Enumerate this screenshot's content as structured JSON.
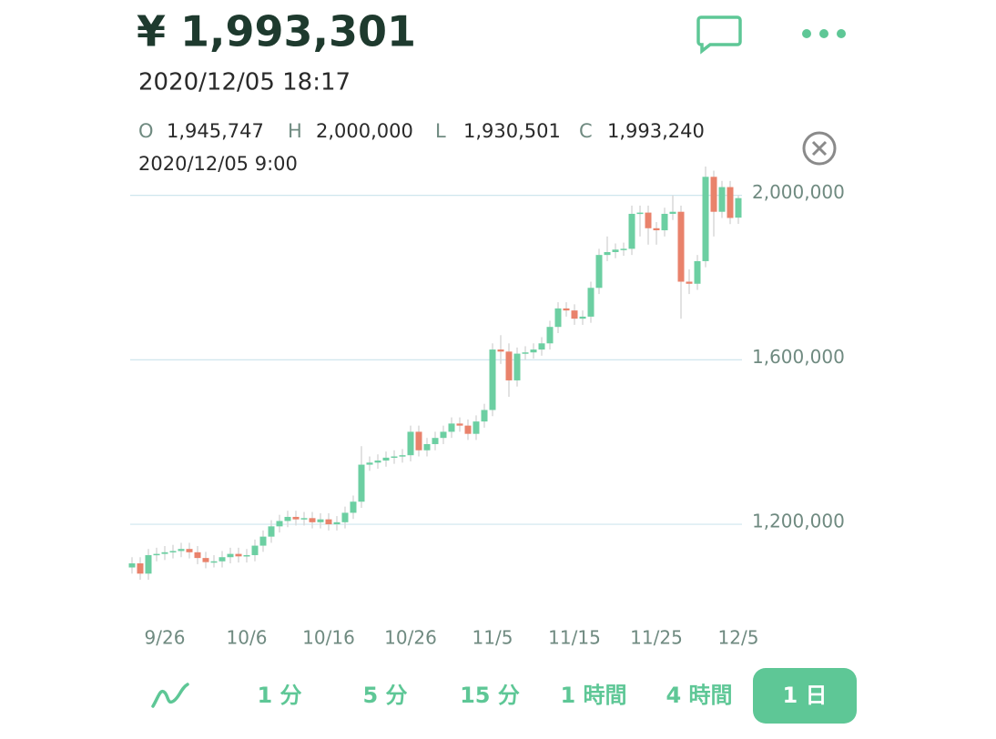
{
  "header": {
    "price": "¥ 1,993,301",
    "datetime": "2020/12/05 18:17",
    "ohlc": [
      {
        "label": "O",
        "value": "1,945,747"
      },
      {
        "label": "H",
        "value": "2,000,000"
      },
      {
        "label": "L",
        "value": "1,930,501"
      },
      {
        "label": "C",
        "value": "1,993,240"
      }
    ],
    "candle_time": "2020/12/05 9:00"
  },
  "tabs": [
    "1 分",
    "5 分",
    "15 分",
    "1 時間",
    "4 時間",
    "1 日"
  ],
  "chart_data": {
    "type": "candlestick",
    "up_color": "#6ccfa2",
    "down_color": "#e9826b",
    "grid": true,
    "ylim": [
      970000,
      2070000
    ],
    "yticks": [
      {
        "value": 1200000,
        "label": "1,200,000"
      },
      {
        "value": 1600000,
        "label": "1,600,000"
      },
      {
        "value": 2000000,
        "label": "2,000,000"
      }
    ],
    "categories": [
      null,
      null,
      null,
      null,
      "9/26",
      null,
      null,
      null,
      null,
      null,
      null,
      null,
      null,
      null,
      "10/6",
      null,
      null,
      null,
      null,
      null,
      null,
      null,
      null,
      null,
      "10/16",
      null,
      null,
      null,
      null,
      null,
      null,
      null,
      null,
      null,
      "10/26",
      null,
      null,
      null,
      null,
      null,
      null,
      null,
      null,
      null,
      "11/5",
      null,
      null,
      null,
      null,
      null,
      null,
      null,
      null,
      null,
      "11/15",
      null,
      null,
      null,
      null,
      null,
      null,
      null,
      null,
      null,
      "11/25",
      null,
      null,
      null,
      null,
      null,
      null,
      null,
      null,
      null,
      "12/5"
    ],
    "open": [
      1095000,
      1105000,
      1080000,
      1125000,
      1128000,
      1132000,
      1135000,
      1140000,
      1132000,
      1118000,
      1108000,
      1110000,
      1120000,
      1128000,
      1122000,
      1125000,
      1148000,
      1170000,
      1195000,
      1208000,
      1218000,
      1212000,
      1215000,
      1205000,
      1212000,
      1200000,
      1205000,
      1228000,
      1255000,
      1345000,
      1350000,
      1355000,
      1362000,
      1365000,
      1368000,
      1425000,
      1380000,
      1395000,
      1410000,
      1425000,
      1445000,
      1440000,
      1420000,
      1450000,
      1478000,
      1625000,
      1620000,
      1550000,
      1615000,
      1618000,
      1625000,
      1640000,
      1680000,
      1725000,
      1720000,
      1700000,
      1705000,
      1775000,
      1855000,
      1862000,
      1868000,
      1870000,
      1955000,
      1958000,
      1920000,
      1915000,
      1955000,
      1960000,
      1790000,
      1785000,
      1840000,
      2045000,
      1960000,
      2020000,
      1945747
    ],
    "high": [
      1120000,
      1120000,
      1140000,
      1143000,
      1147000,
      1150000,
      1155000,
      1155000,
      1147000,
      1133000,
      1125000,
      1135000,
      1143000,
      1143000,
      1140000,
      1163000,
      1185000,
      1210000,
      1223000,
      1233000,
      1233000,
      1230000,
      1230000,
      1227000,
      1227000,
      1220000,
      1243000,
      1270000,
      1390000,
      1365000,
      1370000,
      1377000,
      1380000,
      1383000,
      1440000,
      1440000,
      1410000,
      1425000,
      1440000,
      1460000,
      1460000,
      1455000,
      1465000,
      1493000,
      1640000,
      1660000,
      1640000,
      1630000,
      1633000,
      1640000,
      1655000,
      1695000,
      1740000,
      1740000,
      1735000,
      1720000,
      1790000,
      1870000,
      1900000,
      1883000,
      1885000,
      1975000,
      1975000,
      1975000,
      1935000,
      1970000,
      2000000,
      1975000,
      1820000,
      1855000,
      2070000,
      2060000,
      2035000,
      2035000,
      2000000
    ],
    "low": [
      1080000,
      1065000,
      1065000,
      1110000,
      1113000,
      1117000,
      1120000,
      1117000,
      1103000,
      1093000,
      1095000,
      1095000,
      1105000,
      1107000,
      1107000,
      1110000,
      1133000,
      1155000,
      1180000,
      1193000,
      1197000,
      1197000,
      1190000,
      1190000,
      1185000,
      1185000,
      1190000,
      1213000,
      1240000,
      1330000,
      1335000,
      1340000,
      1347000,
      1350000,
      1353000,
      1365000,
      1365000,
      1380000,
      1395000,
      1410000,
      1425000,
      1405000,
      1405000,
      1435000,
      1463000,
      1590000,
      1510000,
      1535000,
      1600000,
      1603000,
      1610000,
      1625000,
      1665000,
      1705000,
      1685000,
      1685000,
      1690000,
      1760000,
      1840000,
      1847000,
      1853000,
      1855000,
      1900000,
      1880000,
      1880000,
      1900000,
      1940000,
      1700000,
      1760000,
      1770000,
      1825000,
      1900000,
      1945000,
      1930000,
      1930501
    ],
    "close": [
      1105000,
      1080000,
      1125000,
      1128000,
      1132000,
      1135000,
      1140000,
      1132000,
      1118000,
      1108000,
      1110000,
      1120000,
      1128000,
      1122000,
      1125000,
      1148000,
      1170000,
      1195000,
      1208000,
      1218000,
      1212000,
      1215000,
      1205000,
      1212000,
      1200000,
      1205000,
      1228000,
      1255000,
      1345000,
      1350000,
      1355000,
      1362000,
      1365000,
      1368000,
      1425000,
      1380000,
      1395000,
      1410000,
      1425000,
      1445000,
      1440000,
      1420000,
      1450000,
      1478000,
      1625000,
      1620000,
      1550000,
      1615000,
      1618000,
      1625000,
      1640000,
      1680000,
      1725000,
      1720000,
      1700000,
      1705000,
      1775000,
      1855000,
      1862000,
      1868000,
      1870000,
      1955000,
      1958000,
      1920000,
      1915000,
      1955000,
      1960000,
      1790000,
      1785000,
      1840000,
      2045000,
      1960000,
      2020000,
      1945000,
      1993240
    ]
  }
}
